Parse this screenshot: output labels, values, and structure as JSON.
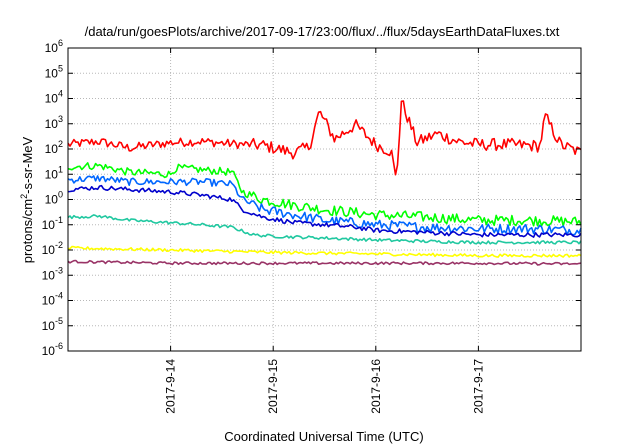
{
  "chart_data": {
    "type": "line",
    "title": "/data/run/goesPlots/archive/2017-09-17/23:00/flux/../flux/5daysEarthDataFluxes.txt",
    "xlabel": "Coordinated Universal Time (UTC)",
    "ylabel_parts": [
      "protons/cm",
      "2",
      "-s-sr-MeV"
    ],
    "y_scale": "log",
    "ylim_exp": [
      -6,
      6
    ],
    "y_ticks": [
      {
        "base": "10",
        "exp": "-6"
      },
      {
        "base": "10",
        "exp": "-5"
      },
      {
        "base": "10",
        "exp": "-4"
      },
      {
        "base": "10",
        "exp": "-3"
      },
      {
        "base": "10",
        "exp": "-2"
      },
      {
        "base": "10",
        "exp": "-1"
      },
      {
        "base": "10",
        "exp": "0"
      },
      {
        "base": "10",
        "exp": "1"
      },
      {
        "base": "10",
        "exp": "2"
      },
      {
        "base": "10",
        "exp": "3"
      },
      {
        "base": "10",
        "exp": "4"
      },
      {
        "base": "10",
        "exp": "5"
      },
      {
        "base": "10",
        "exp": "6"
      }
    ],
    "xlim_days": [
      13.0,
      18.0
    ],
    "x_ticks": [
      {
        "label": "2017-9-14",
        "day": 14
      },
      {
        "label": "2017-9-15",
        "day": 15
      },
      {
        "label": "2017-9-16",
        "day": 16
      },
      {
        "label": "2017-9-17",
        "day": 17
      }
    ],
    "grid": true,
    "series": [
      {
        "color": "#ff0000",
        "x": [
          13.0,
          13.3,
          13.6,
          14.0,
          14.3,
          14.6,
          14.9,
          15.2,
          15.35,
          15.45,
          15.6,
          15.8,
          16.0,
          16.15,
          16.2,
          16.25,
          16.4,
          16.6,
          16.8,
          17.0,
          17.3,
          17.6,
          17.65,
          17.8,
          18.0
        ],
        "y": [
          150,
          200,
          110,
          180,
          200,
          160,
          140,
          70,
          120,
          3000,
          250,
          900,
          150,
          80,
          5,
          8000,
          180,
          400,
          200,
          150,
          150,
          130,
          2000,
          150,
          70
        ]
      },
      {
        "color": "#00ff00",
        "x": [
          13.0,
          13.3,
          13.6,
          14.0,
          14.05,
          14.3,
          14.6,
          14.7,
          14.9,
          15.2,
          15.5,
          15.8,
          16.0,
          16.5,
          17.0,
          17.5,
          18.0
        ],
        "y": [
          20,
          22,
          12,
          10,
          18,
          15,
          12,
          2,
          1,
          0.6,
          0.4,
          0.3,
          0.25,
          0.2,
          0.15,
          0.15,
          0.13
        ]
      },
      {
        "color": "#0066ff",
        "x": [
          13.0,
          13.3,
          13.6,
          14.0,
          14.3,
          14.6,
          14.7,
          14.9,
          15.2,
          15.5,
          15.8,
          16.0,
          16.5,
          17.0,
          17.5,
          18.0
        ],
        "y": [
          6,
          7,
          5,
          5,
          5,
          4,
          1,
          0.4,
          0.25,
          0.15,
          0.12,
          0.1,
          0.08,
          0.07,
          0.07,
          0.06
        ]
      },
      {
        "color": "#0000cc",
        "x": [
          13.0,
          13.3,
          13.6,
          14.0,
          14.3,
          14.6,
          14.7,
          14.9,
          15.2,
          15.5,
          15.8,
          16.0,
          16.5,
          17.0,
          17.5,
          18.0
        ],
        "y": [
          2.5,
          3,
          2.5,
          2,
          1.5,
          1,
          0.4,
          0.2,
          0.12,
          0.1,
          0.08,
          0.06,
          0.05,
          0.04,
          0.04,
          0.04
        ]
      },
      {
        "color": "#20c8a0",
        "x": [
          13.0,
          13.3,
          13.6,
          14.0,
          14.3,
          14.6,
          14.8,
          15.0,
          15.5,
          16.0,
          16.5,
          17.0,
          17.5,
          18.0
        ],
        "y": [
          0.2,
          0.22,
          0.15,
          0.12,
          0.1,
          0.08,
          0.04,
          0.035,
          0.03,
          0.025,
          0.022,
          0.02,
          0.02,
          0.02
        ]
      },
      {
        "color": "#ffff00",
        "x": [
          13.0,
          14.0,
          15.0,
          16.0,
          17.0,
          18.0
        ],
        "y": [
          0.012,
          0.01,
          0.008,
          0.007,
          0.006,
          0.006
        ]
      },
      {
        "color": "#993366",
        "x": [
          13.0,
          14.0,
          15.0,
          16.0,
          17.0,
          18.0
        ],
        "y": [
          0.0035,
          0.003,
          0.003,
          0.003,
          0.003,
          0.0028
        ]
      }
    ]
  }
}
